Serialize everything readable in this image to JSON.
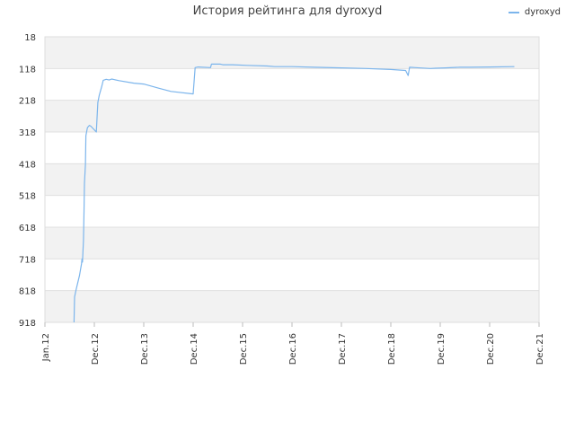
{
  "chart_data": {
    "type": "line",
    "title": "История рейтинга для dyroxyd",
    "xlabel": "",
    "ylabel": "",
    "y_reversed": true,
    "ylim": [
      918,
      18
    ],
    "y_ticks": [
      18,
      118,
      218,
      318,
      418,
      518,
      618,
      718,
      818,
      918
    ],
    "x_ticks": [
      "Jan.12",
      "Dec.12",
      "Dec.13",
      "Dec.14",
      "Dec.15",
      "Dec.16",
      "Dec.17",
      "Dec.18",
      "Dec.19",
      "Dec.20",
      "Dec.21"
    ],
    "grid": true,
    "legend_position": "top-right",
    "series": [
      {
        "name": "dyroxyd",
        "color": "#7cb5ec",
        "points": [
          [
            0.59,
            918
          ],
          [
            0.6,
            838
          ],
          [
            0.63,
            815
          ],
          [
            0.67,
            790
          ],
          [
            0.7,
            770
          ],
          [
            0.72,
            752
          ],
          [
            0.74,
            734
          ],
          [
            0.75,
            718
          ],
          [
            0.76,
            728
          ],
          [
            0.78,
            660
          ],
          [
            0.79,
            570
          ],
          [
            0.8,
            480
          ],
          [
            0.82,
            420
          ],
          [
            0.83,
            330
          ],
          [
            0.86,
            304
          ],
          [
            0.9,
            297
          ],
          [
            0.93,
            300
          ],
          [
            1.04,
            318
          ],
          [
            1.07,
            225
          ],
          [
            1.1,
            202
          ],
          [
            1.15,
            174
          ],
          [
            1.18,
            155
          ],
          [
            1.24,
            152
          ],
          [
            1.3,
            154
          ],
          [
            1.35,
            151
          ],
          [
            1.5,
            156
          ],
          [
            1.8,
            164
          ],
          [
            2.0,
            167
          ],
          [
            2.3,
            180
          ],
          [
            2.55,
            190
          ],
          [
            3.0,
            198
          ],
          [
            3.04,
            115
          ],
          [
            3.1,
            113
          ],
          [
            3.35,
            115
          ],
          [
            3.37,
            104
          ],
          [
            3.55,
            104
          ],
          [
            3.6,
            106
          ],
          [
            3.8,
            106
          ],
          [
            4.1,
            108
          ],
          [
            4.5,
            110
          ],
          [
            4.65,
            112
          ],
          [
            5.0,
            112
          ],
          [
            5.45,
            114
          ],
          [
            6.0,
            116
          ],
          [
            6.5,
            118
          ],
          [
            7.0,
            121
          ],
          [
            7.3,
            124
          ],
          [
            7.35,
            140
          ],
          [
            7.38,
            114
          ],
          [
            7.5,
            115
          ],
          [
            7.8,
            118
          ],
          [
            7.9,
            117
          ],
          [
            8.1,
            116
          ],
          [
            8.4,
            114
          ],
          [
            8.6,
            114
          ],
          [
            9.0,
            113
          ],
          [
            9.5,
            112
          ]
        ]
      }
    ]
  }
}
